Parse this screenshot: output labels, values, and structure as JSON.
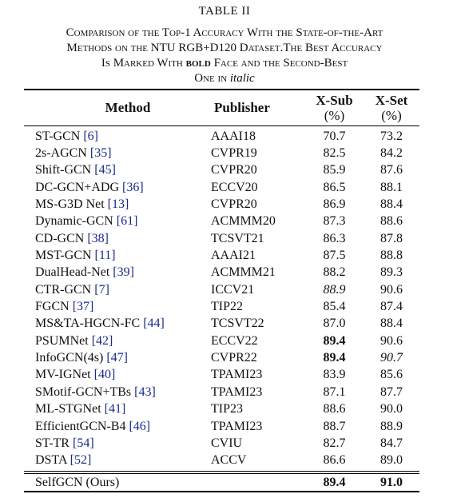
{
  "table_label": "TABLE II",
  "caption": {
    "line1": "Comparison of the Top-1 Accuracy With the State-of-the-Art",
    "line2": "Methods on the NTU RGB+D120 Dataset.The Best Accuracy",
    "line3_a": "Is Marked With ",
    "line3_bold": "bold",
    "line3_b": " Face and the Second-Best",
    "line4_a": "One in ",
    "line4_italic": "italic"
  },
  "headers": {
    "method": "Method",
    "publisher": "Publisher",
    "xsub": "X-Sub",
    "xsub_unit": "(%)",
    "xset": "X-Set",
    "xset_unit": "(%)"
  },
  "rows": [
    {
      "method": "ST-GCN",
      "ref": "[6]",
      "publisher": "AAAI18",
      "xsub": "70.7",
      "xset": "73.2",
      "xsub_style": "",
      "xset_style": ""
    },
    {
      "method": "2s-AGCN",
      "ref": "[35]",
      "publisher": "CVPR19",
      "xsub": "82.5",
      "xset": "84.2",
      "xsub_style": "",
      "xset_style": ""
    },
    {
      "method": "Shift-GCN",
      "ref": "[45]",
      "publisher": "CVPR20",
      "xsub": "85.9",
      "xset": "87.6",
      "xsub_style": "",
      "xset_style": ""
    },
    {
      "method": "DC-GCN+ADG",
      "ref": "[36]",
      "publisher": "ECCV20",
      "xsub": "86.5",
      "xset": "88.1",
      "xsub_style": "",
      "xset_style": ""
    },
    {
      "method": "MS-G3D Net",
      "ref": "[13]",
      "publisher": "CVPR20",
      "xsub": "86.9",
      "xset": "88.4",
      "xsub_style": "",
      "xset_style": ""
    },
    {
      "method": "Dynamic-GCN",
      "ref": "[61]",
      "publisher": "ACMMM20",
      "xsub": "87.3",
      "xset": "88.6",
      "xsub_style": "",
      "xset_style": ""
    },
    {
      "method": "CD-GCN",
      "ref": "[38]",
      "publisher": "TCSVT21",
      "xsub": "86.3",
      "xset": "87.8",
      "xsub_style": "",
      "xset_style": ""
    },
    {
      "method": "MST-GCN",
      "ref": "[11]",
      "publisher": "AAAI21",
      "xsub": "87.5",
      "xset": "88.8",
      "xsub_style": "",
      "xset_style": ""
    },
    {
      "method": "DualHead-Net",
      "ref": "[39]",
      "publisher": "ACMMM21",
      "xsub": "88.2",
      "xset": "89.3",
      "xsub_style": "",
      "xset_style": ""
    },
    {
      "method": "CTR-GCN",
      "ref": "[7]",
      "publisher": "ICCV21",
      "xsub": "88.9",
      "xset": "90.6",
      "xsub_style": "ital",
      "xset_style": ""
    },
    {
      "method": "FGCN",
      "ref": "[37]",
      "publisher": "TIP22",
      "xsub": "85.4",
      "xset": "87.4",
      "xsub_style": "",
      "xset_style": ""
    },
    {
      "method": "MS&TA-HGCN-FC",
      "ref": "[44]",
      "publisher": "TCSVT22",
      "xsub": "87.0",
      "xset": "88.4",
      "xsub_style": "",
      "xset_style": ""
    },
    {
      "method": "PSUMNet",
      "ref": "[42]",
      "publisher": "ECCV22",
      "xsub": "89.4",
      "xset": "90.6",
      "xsub_style": "bold",
      "xset_style": ""
    },
    {
      "method": "InfoGCN(4s)",
      "ref": "[47]",
      "publisher": "CVPR22",
      "xsub": "89.4",
      "xset": "90.7",
      "xsub_style": "bold",
      "xset_style": "ital"
    },
    {
      "method": "MV-IGNet",
      "ref": "[40]",
      "publisher": "TPAMI23",
      "xsub": "83.9",
      "xset": "85.6",
      "xsub_style": "",
      "xset_style": ""
    },
    {
      "method": "SMotif-GCN+TBs",
      "ref": "[43]",
      "publisher": "TPAMI23",
      "xsub": "87.1",
      "xset": "87.7",
      "xsub_style": "",
      "xset_style": ""
    },
    {
      "method": "ML-STGNet",
      "ref": "[41]",
      "publisher": "TIP23",
      "xsub": "88.6",
      "xset": "90.0",
      "xsub_style": "",
      "xset_style": ""
    },
    {
      "method": "EfficientGCN-B4",
      "ref": "[46]",
      "publisher": "TPAMI23",
      "xsub": "88.7",
      "xset": "88.9",
      "xsub_style": "",
      "xset_style": ""
    },
    {
      "method": "ST-TR",
      "ref": "[54]",
      "publisher": "CVIU",
      "xsub": "82.7",
      "xset": "84.7",
      "xsub_style": "",
      "xset_style": ""
    },
    {
      "method": "DSTA",
      "ref": "[52]",
      "publisher": "ACCV",
      "xsub": "86.6",
      "xset": "89.0",
      "xsub_style": "",
      "xset_style": ""
    }
  ],
  "ours": {
    "method": "SelfGCN (Ours)",
    "publisher": "",
    "xsub": "89.4",
    "xset": "91.0"
  },
  "colors": {
    "ref_link": "#1a2a8a",
    "text": "#111111"
  }
}
